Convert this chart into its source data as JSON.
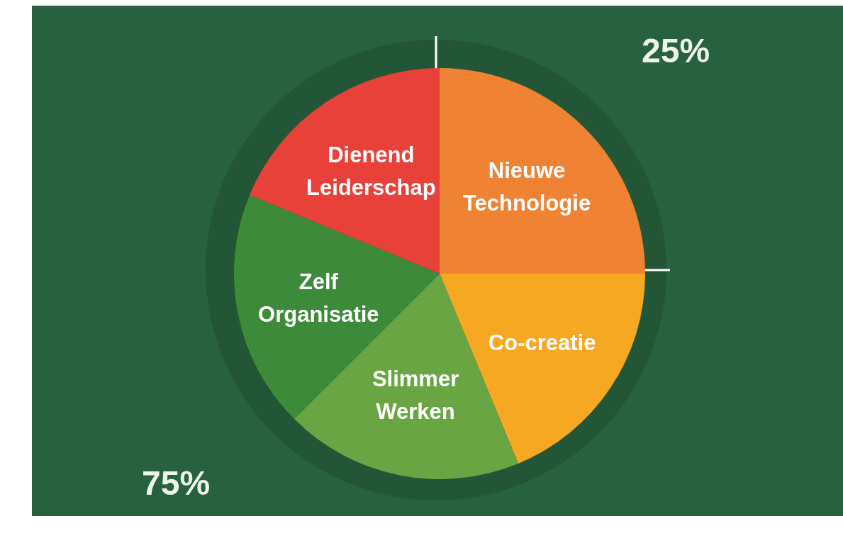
{
  "chart_data": {
    "type": "pie",
    "categories": [
      "Nieuwe Technologie",
      "Co-creatie",
      "Slimmer Werken",
      "Zelf Organisatie",
      "Dienend Leiderschap"
    ],
    "values": [
      25,
      18.75,
      18.75,
      18.75,
      18.75
    ],
    "colors": [
      "#f08233",
      "#f7a823",
      "#6aa544",
      "#3d8a3b",
      "#e8413a"
    ],
    "annotations": [
      "25%",
      "75%"
    ]
  }
}
